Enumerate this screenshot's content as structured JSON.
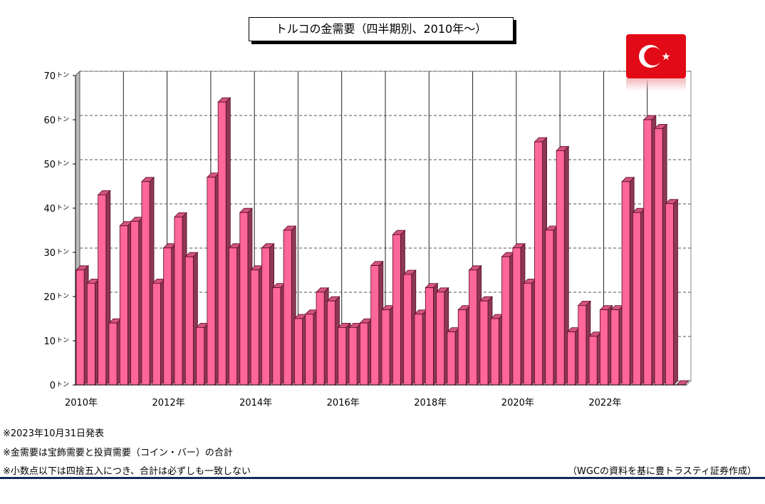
{
  "notes": [
    "※2023年10月31日発表",
    "※金需要は宝飾需要と投資需要（コイン・バー）の合計",
    "※小数点以下は四捨五入につき、合計は必ずしも一致しない"
  ],
  "source": "（WGCの資料を基に豊トラスティ証券作成）",
  "flag": {
    "name": "turkey-flag-icon",
    "color": "#e30a17"
  },
  "chart_data": {
    "type": "bar",
    "title": "トルコの金需要（四半期別、2010年～）",
    "y_unit": "トン",
    "ylim": [
      0,
      70
    ],
    "y_ticks": [
      0,
      10,
      20,
      30,
      40,
      50,
      60,
      70
    ],
    "x_tick_labels": [
      "2010年",
      "2012年",
      "2014年",
      "2016年",
      "2018年",
      "2020年",
      "2022年"
    ],
    "grid": true,
    "bar_color": "#ff6699",
    "categories": [
      "2010Q1",
      "2010Q2",
      "2010Q3",
      "2010Q4",
      "2011Q1",
      "2011Q2",
      "2011Q3",
      "2011Q4",
      "2012Q1",
      "2012Q2",
      "2012Q3",
      "2012Q4",
      "2013Q1",
      "2013Q2",
      "2013Q3",
      "2013Q4",
      "2014Q1",
      "2014Q2",
      "2014Q3",
      "2014Q4",
      "2015Q1",
      "2015Q2",
      "2015Q3",
      "2015Q4",
      "2016Q1",
      "2016Q2",
      "2016Q3",
      "2016Q4",
      "2017Q1",
      "2017Q2",
      "2017Q3",
      "2017Q4",
      "2018Q1",
      "2018Q2",
      "2018Q3",
      "2018Q4",
      "2019Q1",
      "2019Q2",
      "2019Q3",
      "2019Q4",
      "2020Q1",
      "2020Q2",
      "2020Q3",
      "2020Q4",
      "2021Q1",
      "2021Q2",
      "2021Q3",
      "2021Q4",
      "2022Q1",
      "2022Q2",
      "2022Q3",
      "2022Q4",
      "2023Q1",
      "2023Q2",
      "2023Q3",
      "2023Q4"
    ],
    "values": [
      26,
      23,
      43,
      14,
      36,
      37,
      46,
      23,
      31,
      38,
      29,
      13,
      47,
      64,
      31,
      39,
      26,
      31,
      22,
      35,
      15,
      16,
      21,
      19,
      13,
      13,
      14,
      27,
      17,
      34,
      25,
      16,
      22,
      21,
      12,
      17,
      26,
      19,
      15,
      29,
      31,
      23,
      55,
      35,
      53,
      12,
      18,
      11,
      17,
      17,
      46,
      39,
      60,
      58,
      41,
      0
    ]
  }
}
